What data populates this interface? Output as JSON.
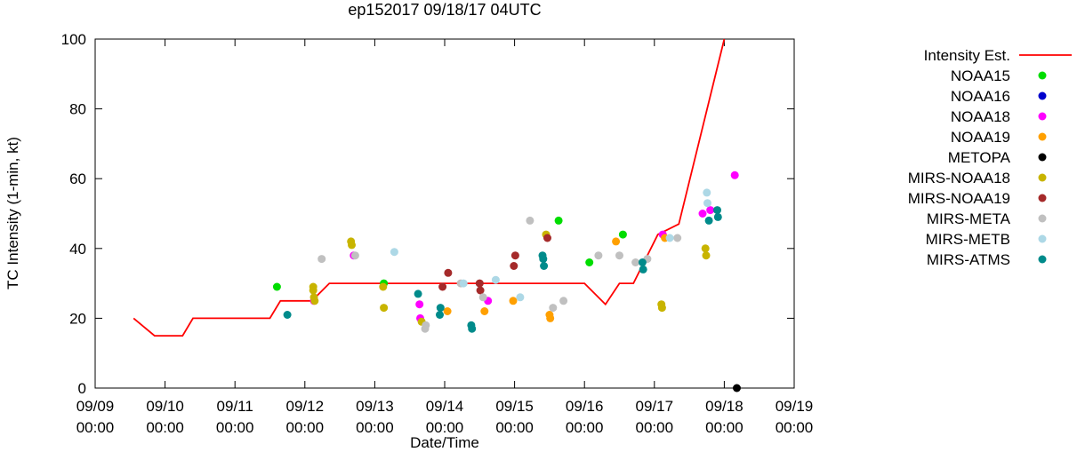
{
  "chart_data": {
    "type": "scatter",
    "title": "ep152017 09/18/17 04UTC",
    "xlabel": "Date/Time",
    "ylabel": "TC Intensity (1-min, kt)",
    "x_unit": "days since 09/09 00:00",
    "xlim": [
      0,
      10
    ],
    "ylim": [
      0,
      100
    ],
    "grid": false,
    "legend_position": "right",
    "y_ticks": [
      0,
      20,
      40,
      60,
      80,
      100
    ],
    "x_ticks": [
      {
        "pos": 0,
        "label": [
          "09/09",
          "00:00"
        ]
      },
      {
        "pos": 1,
        "label": [
          "09/10",
          "00:00"
        ]
      },
      {
        "pos": 2,
        "label": [
          "09/11",
          "00:00"
        ]
      },
      {
        "pos": 3,
        "label": [
          "09/12",
          "00:00"
        ]
      },
      {
        "pos": 4,
        "label": [
          "09/13",
          "00:00"
        ]
      },
      {
        "pos": 5,
        "label": [
          "09/14",
          "00:00"
        ]
      },
      {
        "pos": 6,
        "label": [
          "09/15",
          "00:00"
        ]
      },
      {
        "pos": 7,
        "label": [
          "09/16",
          "00:00"
        ]
      },
      {
        "pos": 8,
        "label": [
          "09/17",
          "00:00"
        ]
      },
      {
        "pos": 9,
        "label": [
          "09/18",
          "00:00"
        ]
      },
      {
        "pos": 10,
        "label": [
          "09/19",
          "00:00"
        ]
      }
    ],
    "intensity_line": {
      "name": "Intensity Est.",
      "color": "#ff0000",
      "points": [
        [
          0.55,
          20
        ],
        [
          0.85,
          15
        ],
        [
          1.25,
          15
        ],
        [
          1.4,
          20
        ],
        [
          2.5,
          20
        ],
        [
          2.65,
          25
        ],
        [
          3.1,
          25
        ],
        [
          3.35,
          30
        ],
        [
          7.0,
          30
        ],
        [
          7.3,
          24
        ],
        [
          7.5,
          30
        ],
        [
          7.7,
          30
        ],
        [
          8.05,
          44
        ],
        [
          8.35,
          47
        ],
        [
          9.0,
          100
        ]
      ]
    },
    "series": [
      {
        "name": "NOAA15",
        "color": "#00dd00",
        "points": [
          [
            2.6,
            29
          ],
          [
            4.13,
            30
          ],
          [
            6.63,
            48
          ],
          [
            7.07,
            36
          ],
          [
            7.55,
            44
          ]
        ]
      },
      {
        "name": "NOAA16",
        "color": "#0000cc",
        "points": []
      },
      {
        "name": "NOAA18",
        "color": "#ff00ff",
        "points": [
          [
            3.13,
            25
          ],
          [
            3.7,
            38
          ],
          [
            4.64,
            24
          ],
          [
            4.65,
            20
          ],
          [
            5.62,
            25
          ],
          [
            8.12,
            44
          ],
          [
            8.69,
            50
          ],
          [
            8.8,
            51
          ],
          [
            9.15,
            61
          ]
        ]
      },
      {
        "name": "NOAA19",
        "color": "#ffa000",
        "points": [
          [
            5.04,
            22
          ],
          [
            5.57,
            22
          ],
          [
            5.98,
            25
          ],
          [
            6.5,
            21
          ],
          [
            6.51,
            20
          ],
          [
            7.45,
            42
          ],
          [
            8.15,
            43
          ]
        ]
      },
      {
        "name": "METOPA",
        "color": "#000000",
        "points": [
          [
            9.18,
            0
          ]
        ]
      },
      {
        "name": "MIRS-NOAA18",
        "color": "#c8b400",
        "points": [
          [
            3.12,
            29
          ],
          [
            3.12,
            28
          ],
          [
            3.13,
            26
          ],
          [
            3.14,
            25
          ],
          [
            3.66,
            42
          ],
          [
            3.67,
            41
          ],
          [
            4.12,
            29
          ],
          [
            4.13,
            23
          ],
          [
            4.67,
            19
          ],
          [
            6.45,
            44
          ],
          [
            8.1,
            24
          ],
          [
            8.11,
            23
          ],
          [
            8.73,
            40
          ],
          [
            8.74,
            38
          ]
        ]
      },
      {
        "name": "MIRS-NOAA19",
        "color": "#a52a2a",
        "points": [
          [
            4.97,
            29
          ],
          [
            5.05,
            33
          ],
          [
            5.5,
            30
          ],
          [
            5.51,
            28
          ],
          [
            5.99,
            35
          ],
          [
            6.01,
            38
          ],
          [
            6.47,
            43
          ]
        ]
      },
      {
        "name": "MIRS-META",
        "color": "#c0c0c0",
        "points": [
          [
            3.24,
            37
          ],
          [
            3.72,
            38
          ],
          [
            4.72,
            17
          ],
          [
            4.73,
            18
          ],
          [
            5.23,
            30
          ],
          [
            5.55,
            26
          ],
          [
            6.22,
            48
          ],
          [
            6.55,
            23
          ],
          [
            6.7,
            25
          ],
          [
            7.2,
            38
          ],
          [
            7.5,
            38
          ],
          [
            7.73,
            36
          ],
          [
            7.9,
            37
          ],
          [
            8.33,
            43
          ]
        ]
      },
      {
        "name": "MIRS-METB",
        "color": "#add8e6",
        "points": [
          [
            4.28,
            39
          ],
          [
            5.27,
            30
          ],
          [
            5.73,
            31
          ],
          [
            6.08,
            26
          ],
          [
            8.22,
            43
          ],
          [
            8.75,
            56
          ],
          [
            8.76,
            53
          ]
        ]
      },
      {
        "name": "MIRS-ATMS",
        "color": "#008b8b",
        "points": [
          [
            2.75,
            21
          ],
          [
            4.62,
            27
          ],
          [
            4.93,
            21
          ],
          [
            4.94,
            23
          ],
          [
            5.38,
            18
          ],
          [
            5.39,
            17
          ],
          [
            6.4,
            38
          ],
          [
            6.41,
            37
          ],
          [
            6.42,
            35
          ],
          [
            7.83,
            36
          ],
          [
            7.84,
            34
          ],
          [
            8.78,
            48
          ],
          [
            8.9,
            51
          ],
          [
            8.91,
            49
          ]
        ]
      }
    ]
  }
}
